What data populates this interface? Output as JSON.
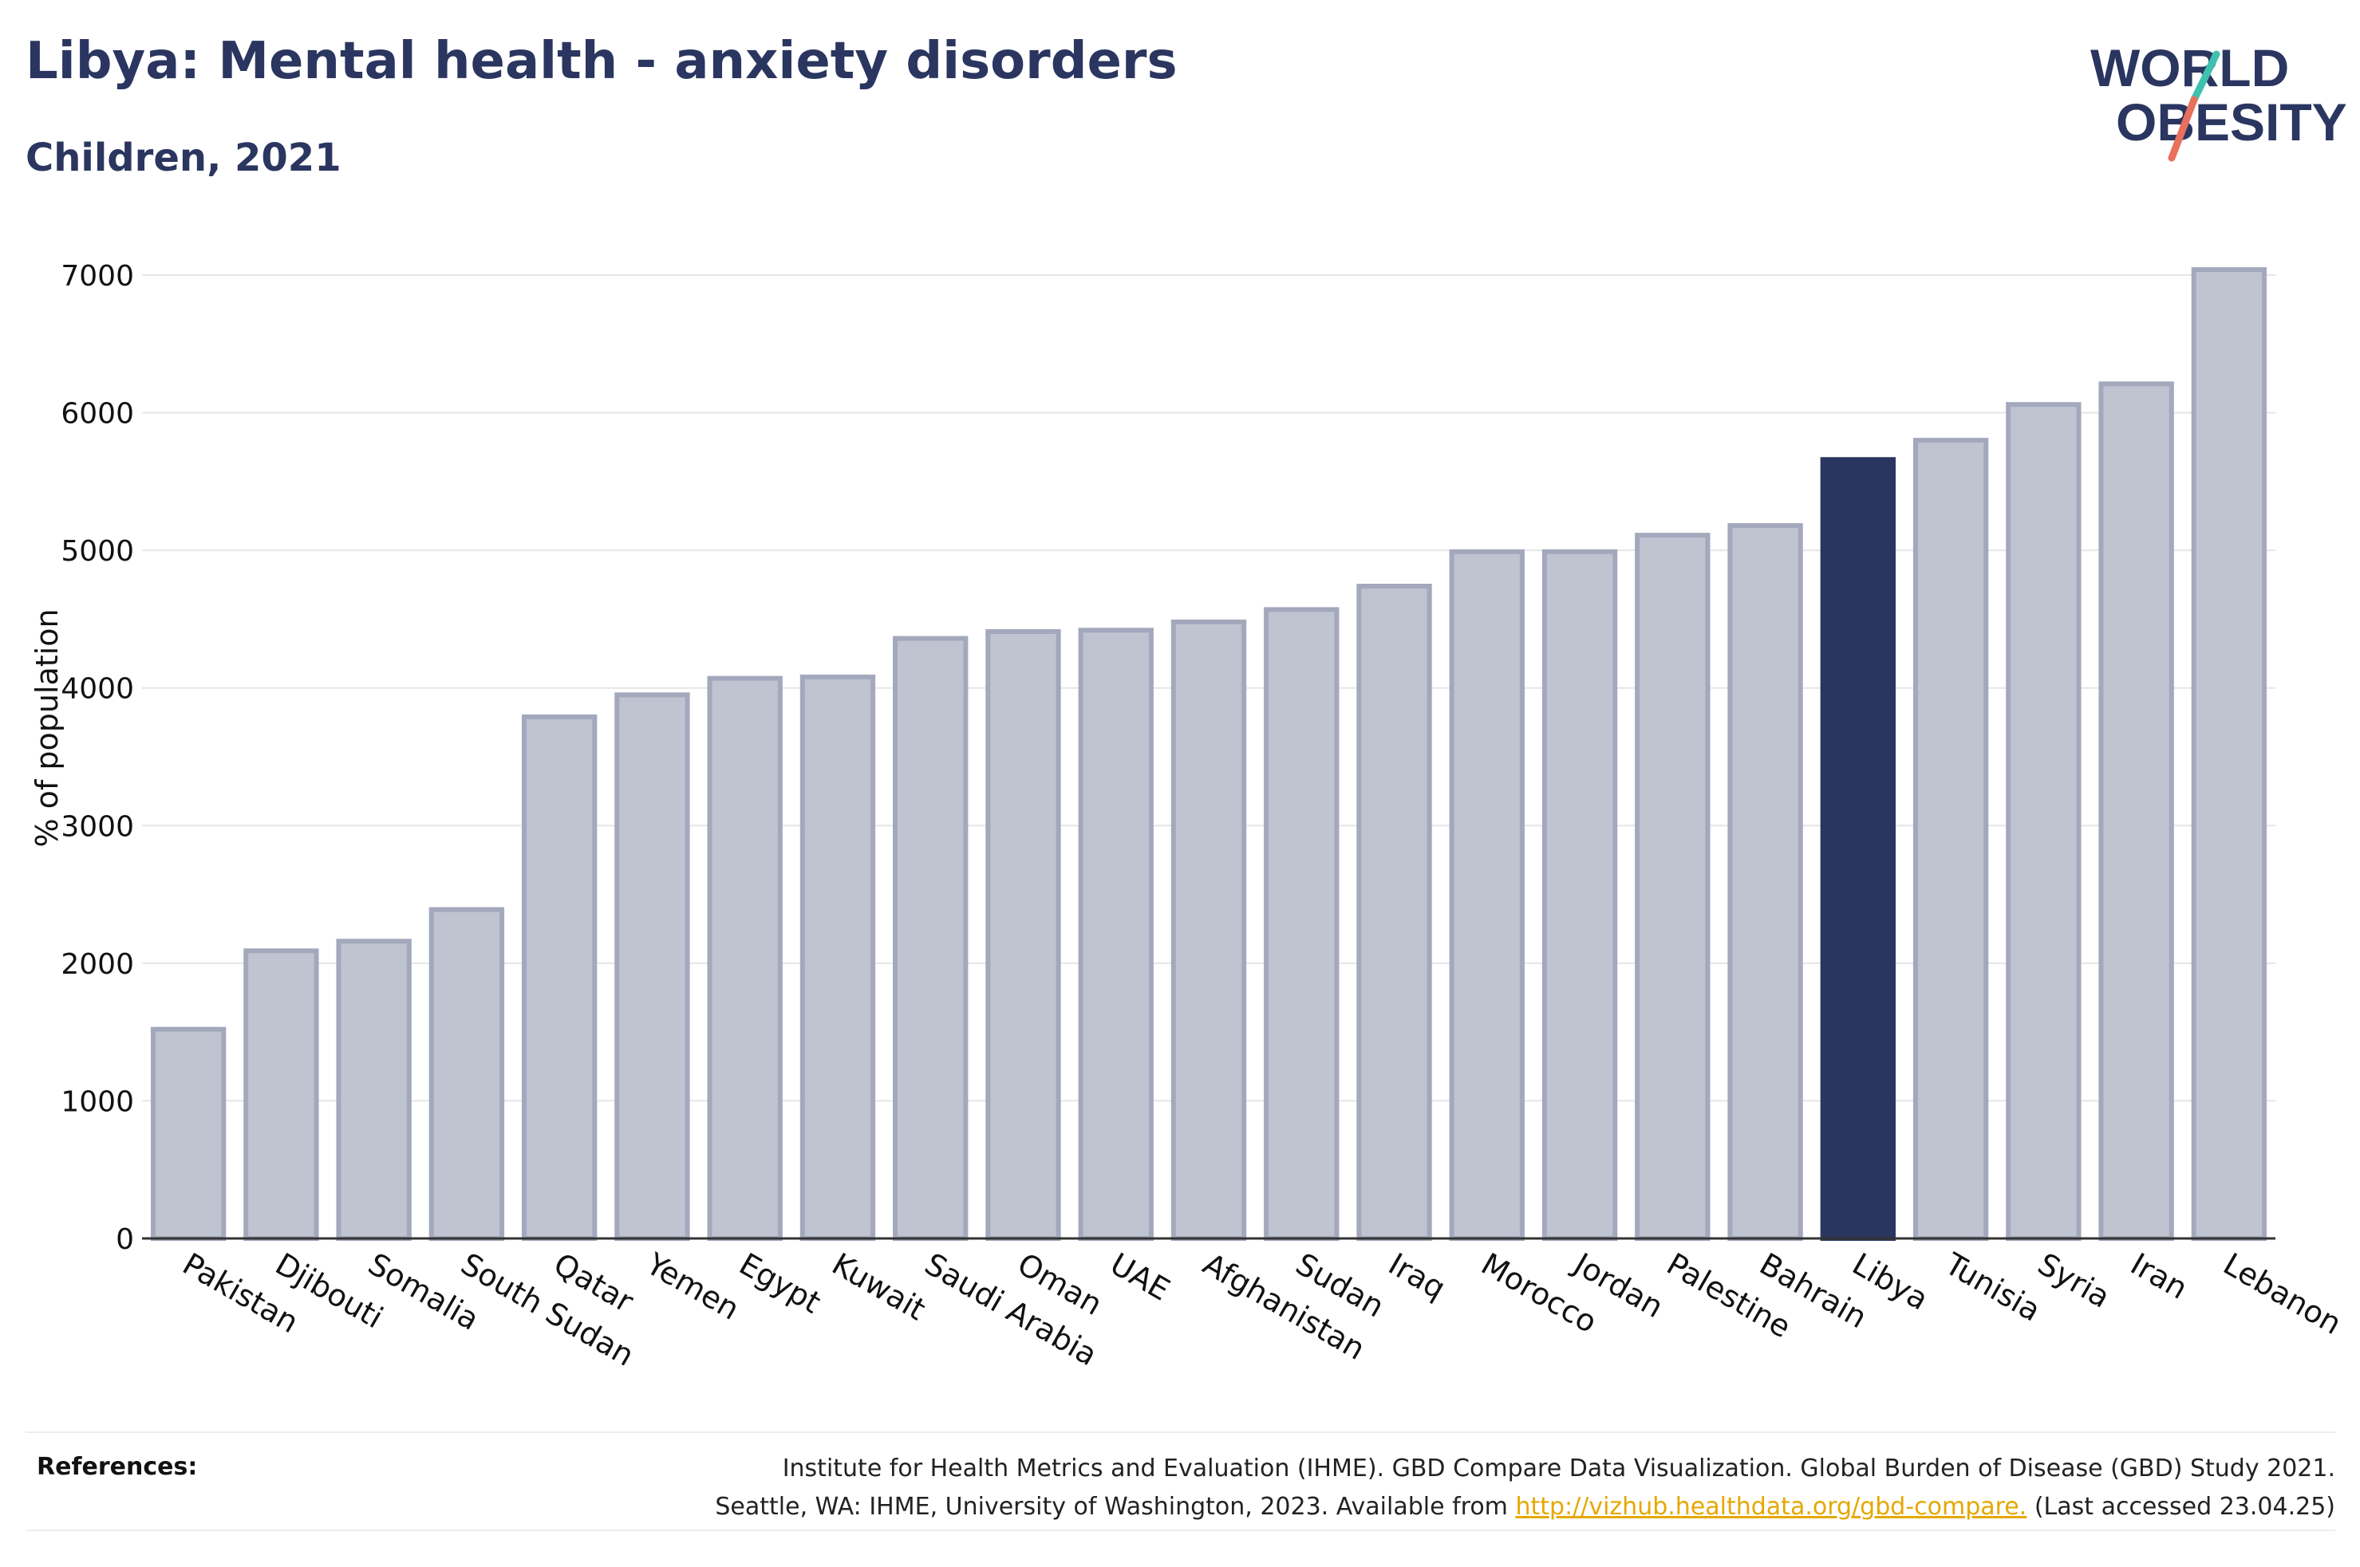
{
  "header": {
    "title": "Libya: Mental health - anxiety disorders",
    "subtitle": "Children, 2021"
  },
  "logo": {
    "line1": "WORLD",
    "line2": "OBESITY",
    "colors": {
      "text": "#2a3660",
      "slash_teal": "#3fc1b0",
      "slash_coral": "#e8705d"
    }
  },
  "chart_data": {
    "type": "bar",
    "ylabel": "% of population",
    "xlabel": "",
    "ylim": [
      0,
      7000
    ],
    "yticks": [
      0,
      1000,
      2000,
      3000,
      4000,
      5000,
      6000,
      7000
    ],
    "grid": true,
    "categories": [
      "Pakistan",
      "Djibouti",
      "Somalia",
      "South Sudan",
      "Qatar",
      "Yemen",
      "Egypt",
      "Kuwait",
      "Saudi Arabia",
      "Oman",
      "UAE",
      "Afghanistan",
      "Sudan",
      "Iraq",
      "Morocco",
      "Jordan",
      "Palestine",
      "Bahrain",
      "Libya",
      "Tunisia",
      "Syria",
      "Iran",
      "Lebanon"
    ],
    "values": [
      1520,
      2090,
      2160,
      2390,
      3790,
      3950,
      4070,
      4080,
      4360,
      4410,
      4420,
      4480,
      4570,
      4740,
      4990,
      4990,
      5110,
      5180,
      5660,
      5800,
      6060,
      6210,
      7040
    ],
    "highlight": "Libya",
    "colors": {
      "bar": "#c0c3d0",
      "bar_border": "#a3a8bd",
      "highlight": "#2a3660",
      "grid": "#e6e6e6",
      "axis": "#333333"
    }
  },
  "references": {
    "label": "References:",
    "line1": "Institute for Health Metrics and Evaluation (IHME). GBD Compare Data Visualization. Global Burden of Disease (GBD) Study 2021.",
    "line2_prefix": "Seattle, WA: IHME, University of Washington, 2023. Available from ",
    "link": "http://vizhub.healthdata.org/gbd-compare.",
    "line2_suffix": " (Last accessed 23.04.25)"
  }
}
